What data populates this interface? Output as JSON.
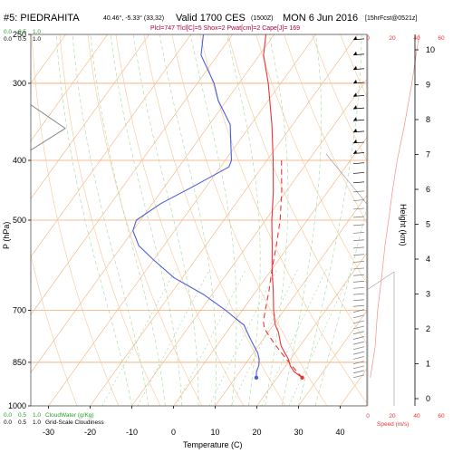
{
  "header": {
    "station": "#5: PIEDRAHITA",
    "coords": "40.46°, -5.33° (33,32)",
    "valid": "Valid 1700 CES",
    "utc": "(1500Z)",
    "date": "MON 6 Jun 2016",
    "fcst": "[15hrFcst@0521z]",
    "indices": "Plcl=747 Tlcl[C]=5 Shox=2 Pwat[cm]=2 Cape[J]= 169"
  },
  "legend": {
    "cloudwater_scale": [
      "0.0",
      "0.5",
      "1.0"
    ],
    "cloudwater_label": "CloudWater (g/Kg)",
    "cloudiness_scale": [
      "0.0",
      "0.5",
      "1.0"
    ],
    "cloudiness_label": "Grid-Scale Cloudiness",
    "speed_scale": [
      "0",
      "20",
      "40",
      "60"
    ],
    "speed_label": "Speed (m/s)"
  },
  "colors": {
    "temperature": "#ee3333",
    "dewpoint": "#4a5fd8",
    "parcel": "#ee3333",
    "isotherm": "#f5b07a",
    "dry_adiabat": "#f5c898",
    "moist_adiabat": "#a8d8a0",
    "mixing_ratio": "#9fd69f",
    "frame": "#999999",
    "grid": "#f4a972"
  },
  "chart_data": {
    "type": "line",
    "subtype": "skew-T log-P sounding",
    "xlabel": "Temperature (C)",
    "ylabel": "P (hPa)",
    "y2label": "Height (km)",
    "xlim": [
      -35,
      50
    ],
    "ylim": [
      1000,
      250
    ],
    "x_ticks": [
      -30,
      -20,
      -10,
      0,
      10,
      20,
      30,
      40
    ],
    "p_ticks": [
      1000,
      850,
      700,
      500,
      400,
      300,
      250
    ],
    "height_ticks": [
      0,
      1,
      2,
      3,
      4,
      5,
      6,
      7,
      8,
      9,
      10
    ],
    "series": [
      {
        "name": "Temperature",
        "points": [
          [
            900,
            26
          ],
          [
            880,
            23
          ],
          [
            860,
            21
          ],
          [
            840,
            19.5
          ],
          [
            820,
            17.5
          ],
          [
            800,
            15.5
          ],
          [
            780,
            14
          ],
          [
            760,
            12.5
          ],
          [
            740,
            10.5
          ],
          [
            720,
            9
          ],
          [
            700,
            7.5
          ],
          [
            650,
            4
          ],
          [
            600,
            0
          ],
          [
            550,
            -4
          ],
          [
            500,
            -8.5
          ],
          [
            450,
            -13
          ],
          [
            400,
            -18.5
          ],
          [
            350,
            -25
          ],
          [
            300,
            -33
          ],
          [
            270,
            -39
          ],
          [
            250,
            -42
          ]
        ]
      },
      {
        "name": "Dewpoint",
        "points": [
          [
            900,
            15
          ],
          [
            880,
            14
          ],
          [
            860,
            13.5
          ],
          [
            840,
            12.5
          ],
          [
            820,
            11
          ],
          [
            800,
            9
          ],
          [
            780,
            7
          ],
          [
            760,
            5
          ],
          [
            740,
            3
          ],
          [
            720,
            -0.5
          ],
          [
            700,
            -4
          ],
          [
            660,
            -12
          ],
          [
            620,
            -22
          ],
          [
            580,
            -30
          ],
          [
            550,
            -36
          ],
          [
            520,
            -40
          ],
          [
            500,
            -41
          ],
          [
            470,
            -38
          ],
          [
            440,
            -33
          ],
          [
            410,
            -28
          ],
          [
            400,
            -28.5
          ],
          [
            380,
            -31
          ],
          [
            350,
            -35
          ],
          [
            320,
            -42
          ],
          [
            300,
            -46
          ],
          [
            270,
            -54
          ],
          [
            250,
            -57
          ]
        ]
      },
      {
        "name": "Parcel",
        "points": [
          [
            900,
            26
          ],
          [
            870,
            22.5
          ],
          [
            840,
            19
          ],
          [
            810,
            15.5
          ],
          [
            780,
            12
          ],
          [
            750,
            8.5
          ],
          [
            730,
            7
          ],
          [
            700,
            5.5
          ],
          [
            650,
            3
          ],
          [
            600,
            0
          ],
          [
            550,
            -3
          ],
          [
            500,
            -6.5
          ],
          [
            450,
            -11
          ],
          [
            400,
            -16.5
          ]
        ]
      }
    ],
    "surface_points": [
      {
        "name": "surface-temperature",
        "pressure": 900,
        "value": 26
      },
      {
        "name": "surface-dewpoint",
        "pressure": 900,
        "value": 15
      }
    ],
    "wind_speed": {
      "xlim": [
        0,
        60
      ],
      "points": [
        [
          900,
          2
        ],
        [
          850,
          4
        ],
        [
          800,
          6
        ],
        [
          750,
          7
        ],
        [
          700,
          8
        ],
        [
          650,
          10
        ],
        [
          600,
          12
        ],
        [
          550,
          14
        ],
        [
          500,
          17
        ],
        [
          450,
          20
        ],
        [
          400,
          24
        ],
        [
          350,
          30
        ],
        [
          300,
          36
        ],
        [
          250,
          42
        ]
      ]
    },
    "terrain_left": [
      [
        325,
        0
      ],
      [
        355,
        38
      ],
      [
        385,
        0
      ]
    ]
  }
}
